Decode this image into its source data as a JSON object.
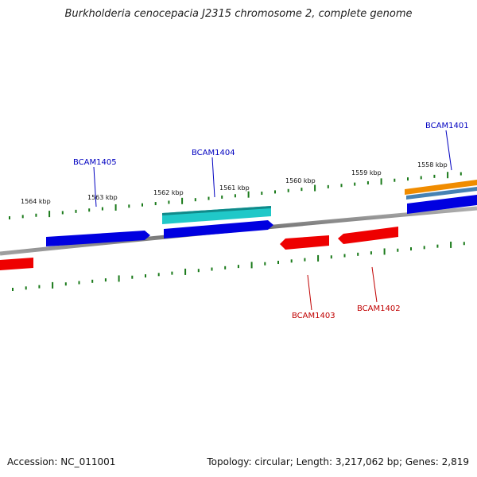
{
  "title": "Burkholderia cenocepacia J2315 chromosome 2, complete genome",
  "scale_labels": [
    "1564 kbp",
    "1563 kbp",
    "1562 kbp",
    "1561 kbp",
    "1560 kbp",
    "1559 kbp",
    "1558 kbp"
  ],
  "gene_labels": {
    "bcam1405": "BCAM1405",
    "bcam1404": "BCAM1404",
    "bcam1401": "BCAM1401",
    "bcam1403": "BCAM1403",
    "bcam1402": "BCAM1402"
  },
  "colors": {
    "forward": "#0000e0",
    "reverse": "#ee0000",
    "cyan": "#20c8c8",
    "orange": "#f08c00",
    "steel": "#4682b4",
    "tick": "#1a7a1a",
    "backbone": "#808080"
  },
  "footer": {
    "accession": "Accession: NC_011001",
    "topology": "Topology: circular; Length: 3,217,062 bp; Genes: 2,819"
  }
}
